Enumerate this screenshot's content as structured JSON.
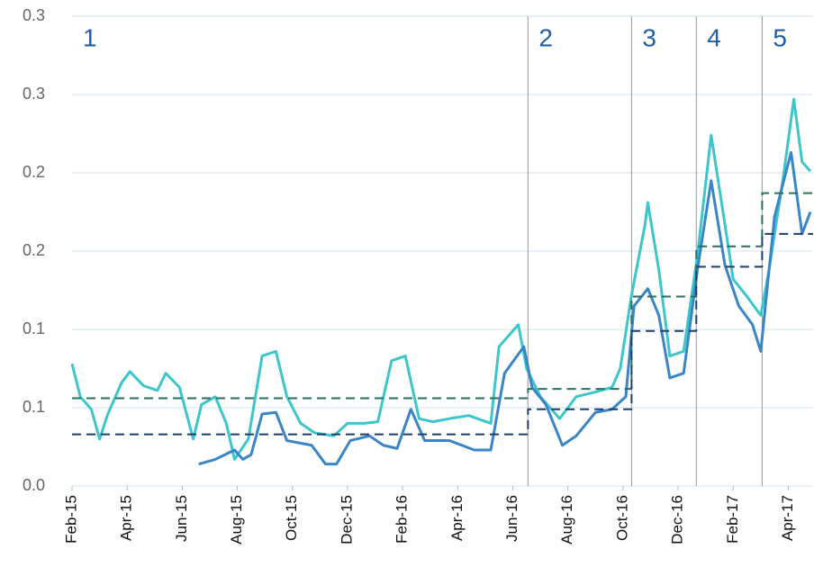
{
  "chart_data": {
    "type": "line",
    "xlim": [
      0,
      26.9
    ],
    "xticks": [
      {
        "value": 0,
        "label": "Feb-15"
      },
      {
        "value": 2,
        "label": "Apr-15"
      },
      {
        "value": 4,
        "label": "Jun-15"
      },
      {
        "value": 6,
        "label": "Aug-15"
      },
      {
        "value": 8,
        "label": "Oct-15"
      },
      {
        "value": 10,
        "label": "Dec-15"
      },
      {
        "value": 12,
        "label": "Feb-16"
      },
      {
        "value": 14,
        "label": "Apr-16"
      },
      {
        "value": 16,
        "label": "Jun-16"
      },
      {
        "value": 18,
        "label": "Aug-16"
      },
      {
        "value": 20,
        "label": "Oct-16"
      },
      {
        "value": 22,
        "label": "Dec-16"
      },
      {
        "value": 24,
        "label": "Feb-17"
      },
      {
        "value": 26,
        "label": "Apr-17"
      }
    ],
    "ylim": [
      0,
      0.3
    ],
    "yticks": [
      {
        "value": 0,
        "label": "0.0"
      },
      {
        "value": 0.05,
        "label": "0.1"
      },
      0.1,
      {
        "value": 0.15,
        "label": "0.2"
      },
      0.2,
      {
        "value": 0.25,
        "label": "0.3"
      },
      0.3
    ],
    "grid": true,
    "dividers": [
      16.55,
      20.31,
      22.66,
      25.05
    ],
    "region_labels": [
      "1",
      "2",
      "3",
      "4",
      "5"
    ],
    "series": [
      {
        "color": "#3cc6c9",
        "style": "solid",
        "x": [
          0,
          0.3,
          0.7,
          1.0,
          1.3,
          1.8,
          2.1,
          2.6,
          3.1,
          3.4,
          3.9,
          4.4,
          4.7,
          5.2,
          5.6,
          5.9,
          6.4,
          6.9,
          7.4,
          7.8,
          8.3,
          8.8,
          9.5,
          10.0,
          10.6,
          11.1,
          11.6,
          12.1,
          12.6,
          13.1,
          13.7,
          14.4,
          15.2,
          15.5,
          16.2,
          16.5,
          17.0,
          17.7,
          18.3,
          19.0,
          19.6,
          19.9,
          20.3,
          20.8,
          20.9,
          21.3,
          21.7,
          22.2,
          22.7,
          23.2,
          23.7,
          24.0,
          24.5,
          25.0,
          25.3,
          25.8,
          26.2,
          26.5,
          26.8
        ],
        "values": [
          0.078,
          0.057,
          0.049,
          0.03,
          0.046,
          0.066,
          0.073,
          0.064,
          0.061,
          0.072,
          0.063,
          0.03,
          0.052,
          0.057,
          0.04,
          0.017,
          0.03,
          0.083,
          0.086,
          0.057,
          0.04,
          0.034,
          0.032,
          0.04,
          0.04,
          0.041,
          0.08,
          0.083,
          0.043,
          0.041,
          0.043,
          0.045,
          0.04,
          0.089,
          0.103,
          0.075,
          0.057,
          0.043,
          0.057,
          0.06,
          0.063,
          0.075,
          0.121,
          0.167,
          0.181,
          0.138,
          0.083,
          0.086,
          0.147,
          0.224,
          0.167,
          0.132,
          0.121,
          0.109,
          0.138,
          0.195,
          0.247,
          0.207,
          0.201
        ]
      },
      {
        "color": "#3a84c8",
        "style": "solid",
        "x": [
          4.6,
          5.2,
          5.9,
          6.2,
          6.5,
          6.9,
          7.4,
          7.8,
          8.7,
          9.2,
          9.6,
          10.1,
          10.8,
          11.3,
          11.8,
          12.3,
          12.8,
          13.7,
          14.6,
          15.2,
          15.7,
          16.4,
          16.7,
          17.2,
          17.8,
          18.3,
          19.0,
          19.6,
          20.1,
          20.4,
          20.9,
          21.3,
          21.7,
          22.2,
          22.7,
          23.2,
          23.7,
          24.2,
          24.7,
          25.0,
          25.5,
          26.1,
          26.5,
          26.8
        ],
        "values": [
          0.014,
          0.017,
          0.023,
          0.017,
          0.02,
          0.046,
          0.047,
          0.029,
          0.026,
          0.014,
          0.014,
          0.029,
          0.032,
          0.026,
          0.024,
          0.049,
          0.029,
          0.029,
          0.023,
          0.023,
          0.072,
          0.089,
          0.063,
          0.052,
          0.026,
          0.032,
          0.047,
          0.049,
          0.057,
          0.115,
          0.126,
          0.109,
          0.069,
          0.072,
          0.138,
          0.195,
          0.141,
          0.115,
          0.103,
          0.086,
          0.172,
          0.213,
          0.161,
          0.175
        ]
      },
      {
        "color": "#2a6e62",
        "style": "dashed",
        "step": true,
        "x": [
          0,
          16.55,
          20.31,
          22.66,
          25.05
        ],
        "values": [
          0.056,
          0.062,
          0.121,
          0.153,
          0.187
        ]
      },
      {
        "color": "#1f3e6e",
        "style": "dashed",
        "step": true,
        "x": [
          0,
          16.55,
          20.31,
          22.66,
          25.05
        ],
        "values": [
          0.033,
          0.049,
          0.099,
          0.14,
          0.161
        ]
      }
    ]
  }
}
